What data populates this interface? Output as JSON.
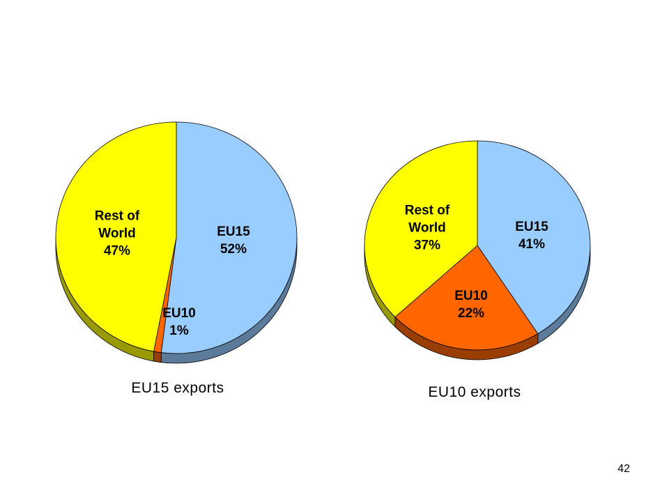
{
  "chart_data": [
    {
      "type": "pie",
      "title": "EU15 exports",
      "categories": [
        "EU15",
        "EU10",
        "Rest of World"
      ],
      "values": [
        52,
        1,
        47
      ],
      "value_labels": [
        "52%",
        "1%",
        "47%"
      ],
      "colors": [
        "#99ccff",
        "#ff6600",
        "#ffff00"
      ]
    },
    {
      "type": "pie",
      "title": "EU10 exports",
      "categories": [
        "EU15",
        "EU10",
        "Rest of World"
      ],
      "values": [
        41,
        22,
        37
      ],
      "value_labels": [
        "41%",
        "22%",
        "37%"
      ],
      "colors": [
        "#99ccff",
        "#ff6600",
        "#ffff00"
      ]
    }
  ],
  "page_number": 42
}
